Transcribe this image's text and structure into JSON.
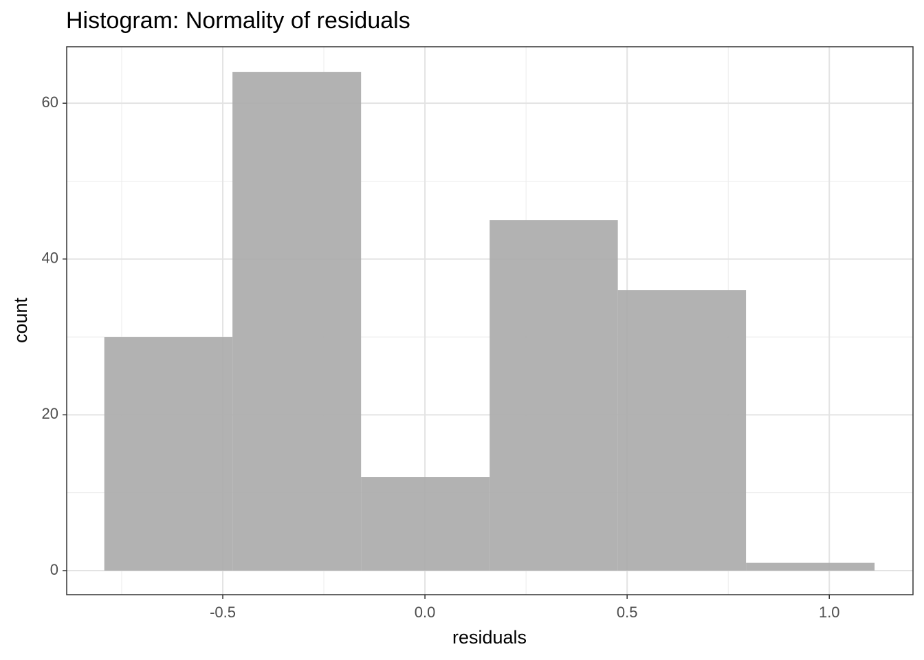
{
  "chart_data": {
    "type": "histogram",
    "title": "Histogram: Normality of residuals",
    "x_label": "residuals",
    "y_label": "count",
    "bins": [
      -0.793,
      -0.476,
      -0.158,
      0.16,
      0.477,
      0.794,
      1.112
    ],
    "counts": [
      30,
      64,
      12,
      45,
      36,
      1
    ],
    "color": "#ababab",
    "xlim": [
      -0.886,
      1.207
    ],
    "ylim": [
      -3.09,
      67.25
    ],
    "xticks": [
      -0.5,
      {
        "value": 0,
        "label": "0.0"
      },
      0.5,
      {
        "value": 1,
        "label": "1.0"
      }
    ],
    "yticks": [
      0,
      20,
      40,
      60
    ],
    "x_minor_grid": [
      -0.75,
      -0.25,
      0.25,
      0.75
    ],
    "y_minor_grid": [
      10,
      30,
      50
    ],
    "grid": true
  }
}
